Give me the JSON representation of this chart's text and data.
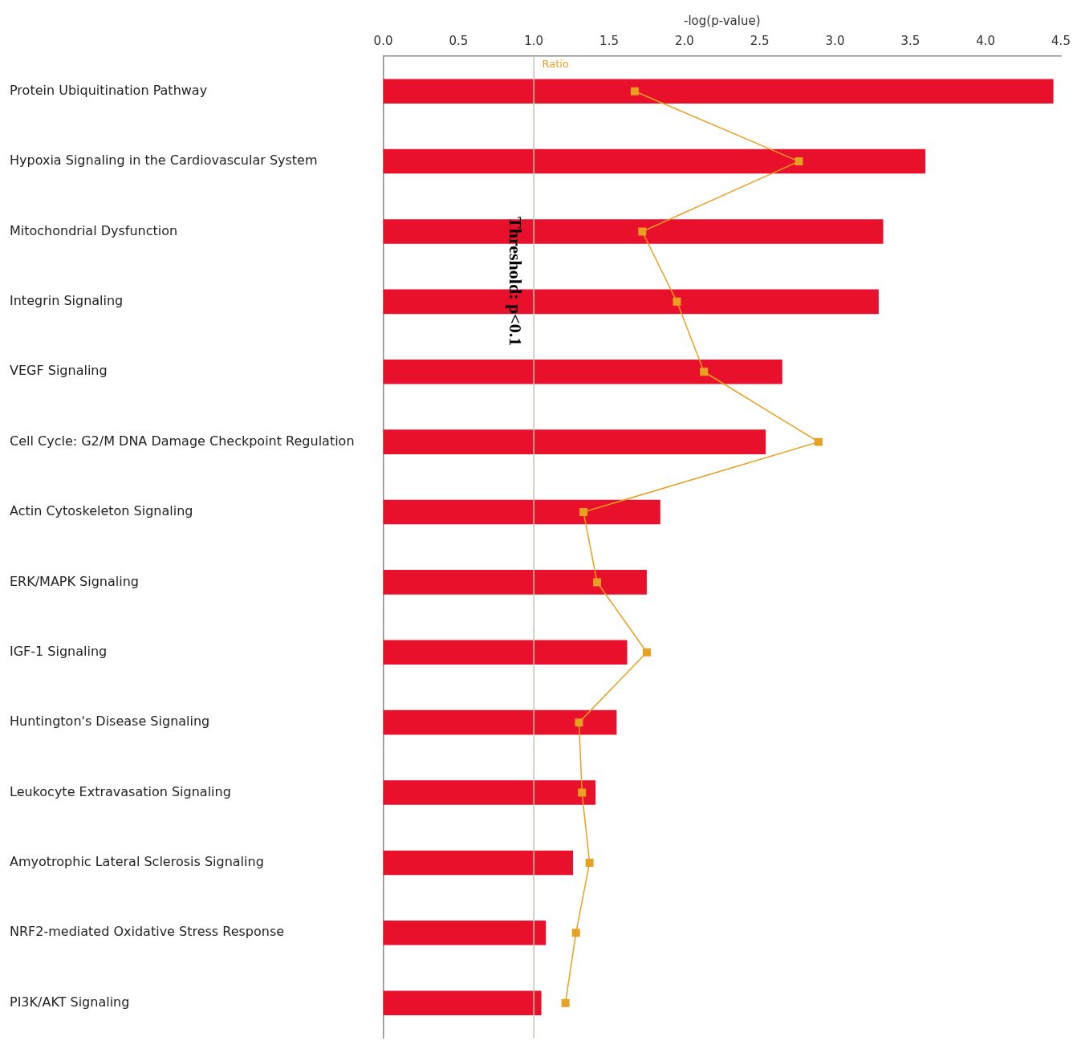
{
  "chart_data": {
    "type": "bar",
    "orientation": "horizontal",
    "xlabel": "-log(p-value)",
    "categories": [
      "Protein Ubiquitination Pathway",
      "Hypoxia Signaling in the Cardiovascular System",
      "Mitochondrial Dysfunction",
      "Integrin Signaling",
      "VEGF Signaling",
      "Cell Cycle: G2/M DNA Damage Checkpoint Regulation",
      "Actin Cytoskeleton Signaling",
      "ERK/MAPK Signaling",
      "IGF-1 Signaling",
      "Huntington's Disease Signaling",
      "Leukocyte Extravasation Signaling",
      "Amyotrophic Lateral Sclerosis Signaling",
      "NRF2-mediated Oxidative Stress Response",
      "PI3K/AKT Signaling"
    ],
    "series": [
      {
        "color": "#e8102a",
        "values": [
          4.45,
          3.6,
          3.32,
          3.29,
          2.65,
          2.54,
          1.84,
          1.75,
          1.62,
          1.55,
          1.41,
          1.26,
          1.08,
          1.05
        ]
      },
      {
        "type": "line",
        "name": "Ratio",
        "color": "#e8a020",
        "marker": "square",
        "values": [
          1.67,
          2.76,
          1.72,
          1.95,
          2.13,
          2.89,
          1.33,
          1.42,
          1.75,
          1.3,
          1.32,
          1.37,
          1.28,
          1.21
        ]
      }
    ],
    "xlim": [
      0,
      4.5
    ],
    "xticks": [
      {
        "value": 0,
        "label": "0.0"
      },
      {
        "value": 0.5,
        "label": "0.5"
      },
      {
        "value": 1,
        "label": "1.0"
      },
      {
        "value": 1.5,
        "label": "1.5"
      },
      {
        "value": 2,
        "label": "2.0"
      },
      {
        "value": 2.5,
        "label": "2.5"
      },
      {
        "value": 3,
        "label": "3.0"
      },
      {
        "value": 3.5,
        "label": "3.5"
      },
      {
        "value": 4,
        "label": "4.0"
      },
      {
        "value": 4.5,
        "label": "4.5"
      }
    ],
    "grid": false,
    "legend": false,
    "ref_lines": [
      {
        "axis": "x",
        "value": 1,
        "label": "Threshold: p<0.1",
        "color": "#c8c0b0"
      }
    ]
  }
}
